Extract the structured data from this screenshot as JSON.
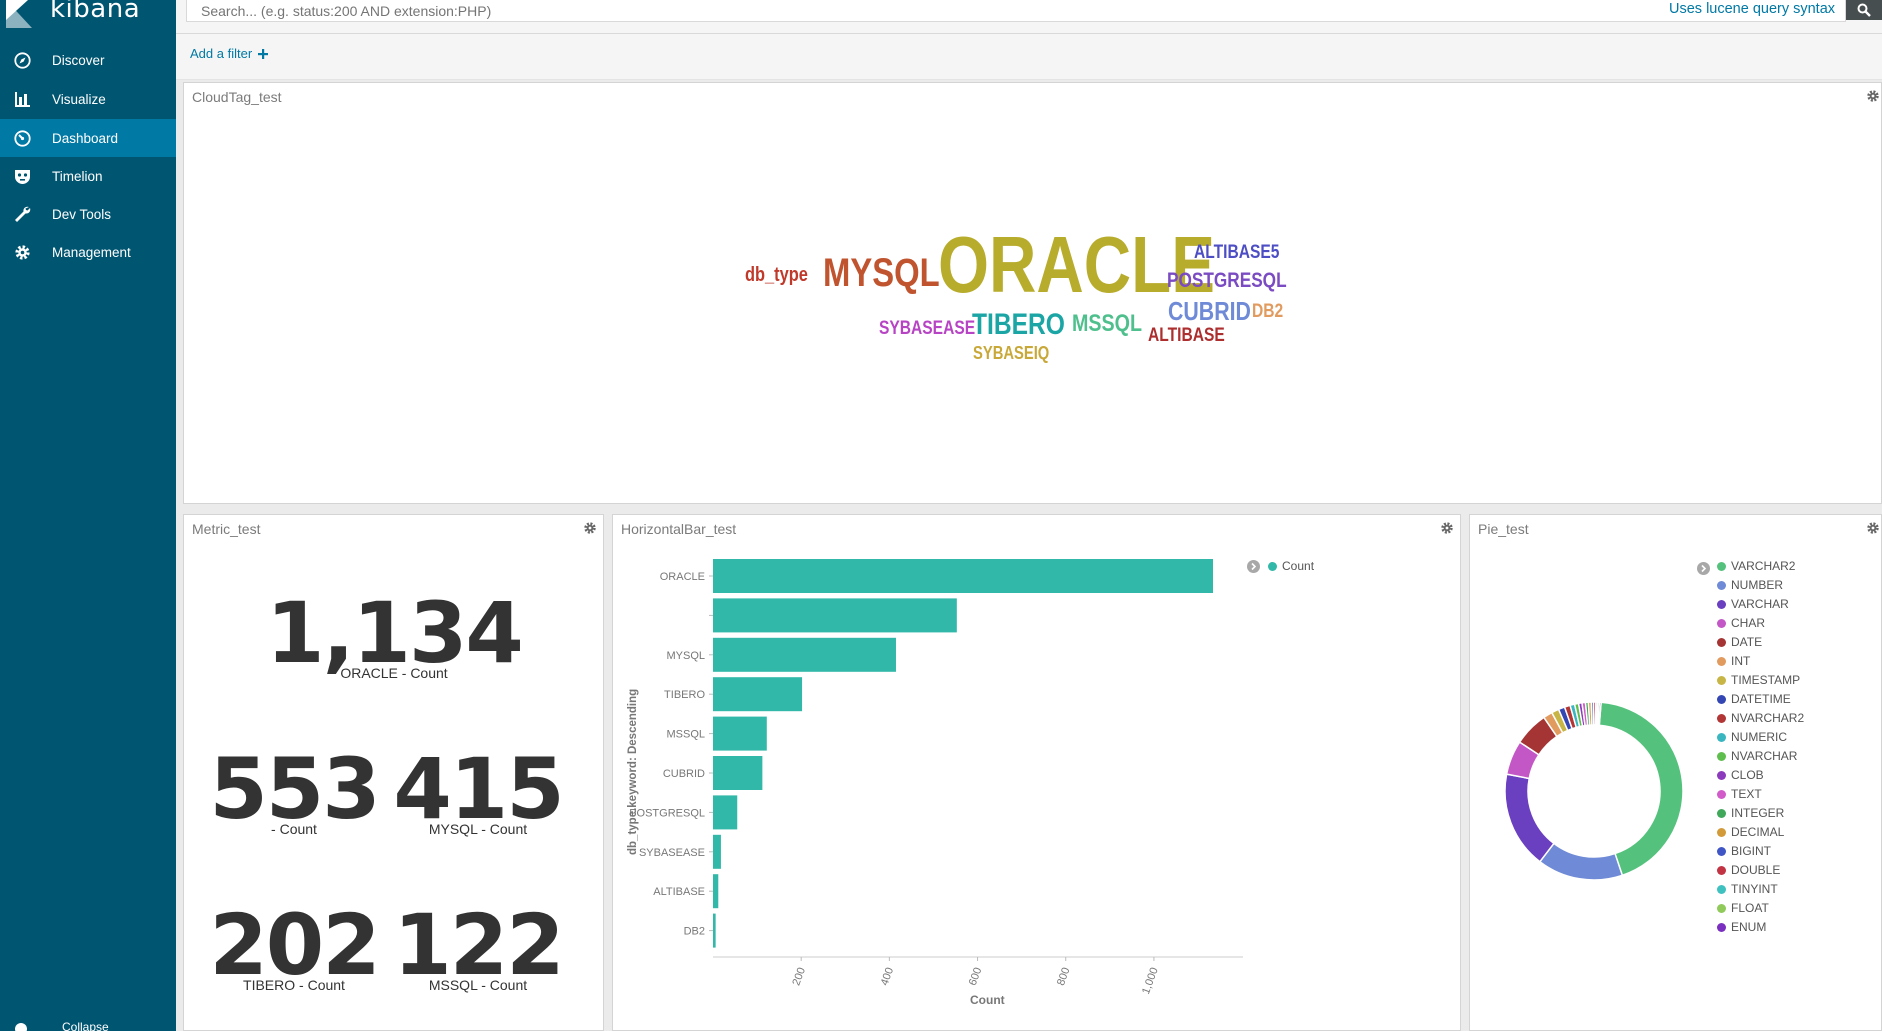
{
  "app": {
    "brand": "kibana"
  },
  "sidebar": {
    "items": [
      {
        "label": "Discover",
        "icon": "compass-icon",
        "active": false
      },
      {
        "label": "Visualize",
        "icon": "bar-chart-icon",
        "active": false
      },
      {
        "label": "Dashboard",
        "icon": "dashboard-gauge-icon",
        "active": true
      },
      {
        "label": "Timelion",
        "icon": "timelion-mask-icon",
        "active": false
      },
      {
        "label": "Dev Tools",
        "icon": "wrench-icon",
        "active": false
      },
      {
        "label": "Management",
        "icon": "gear-icon",
        "active": false
      }
    ],
    "collapse_label": "Collapse"
  },
  "query": {
    "placeholder": "Search... (e.g. status:200 AND extension:PHP)",
    "value": "",
    "lucene_link": "Uses lucene query syntax"
  },
  "filter": {
    "add_label": "Add a filter"
  },
  "panels": {
    "cloud": {
      "title": "CloudTag_test",
      "words": [
        {
          "text": "db_type",
          "color": "#c0392b",
          "size": 20
        },
        {
          "text": "MYSQL",
          "color": "#c0542f",
          "size": 40
        },
        {
          "text": "ORACLE",
          "color": "#b8ac2c",
          "size": 80
        },
        {
          "text": "ALTIBASE5",
          "color": "#4d4ec4",
          "size": 19
        },
        {
          "text": "POSTGRESQL",
          "color": "#7a4bc2",
          "size": 21
        },
        {
          "text": "CUBRID",
          "color": "#6f8ad6",
          "size": 26
        },
        {
          "text": "DB2",
          "color": "#e19b5f",
          "size": 19
        },
        {
          "text": "SYBASEASE",
          "color": "#b744c4",
          "size": 19
        },
        {
          "text": "TIBERO",
          "color": "#1ba5a5",
          "size": 30
        },
        {
          "text": "MSSQL",
          "color": "#4fc08d",
          "size": 24
        },
        {
          "text": "ALTIBASE",
          "color": "#ad2e2e",
          "size": 19
        },
        {
          "text": "SYBASEIQ",
          "color": "#c8a838",
          "size": 18
        }
      ]
    },
    "metric": {
      "title": "Metric_test",
      "metrics": [
        {
          "value": "1,134",
          "label": "ORACLE - Count"
        },
        {
          "value": "553",
          "label": "- Count"
        },
        {
          "value": "415",
          "label": "MYSQL - Count"
        },
        {
          "value": "202",
          "label": "TIBERO - Count"
        },
        {
          "value": "122",
          "label": "MSSQL - Count"
        }
      ]
    },
    "hbar": {
      "title": "HorizontalBar_test"
    },
    "pie": {
      "title": "Pie_test"
    }
  },
  "chart_data": [
    {
      "type": "bar",
      "orientation": "horizontal",
      "categories": [
        "ORACLE",
        "",
        "MYSQL",
        "TIBERO",
        "MSSQL",
        "CUBRID",
        "POSTGRESQL",
        "SYBASEASE",
        "ALTIBASE",
        "DB2"
      ],
      "series": [
        {
          "name": "Count",
          "values": [
            1134,
            553,
            415,
            202,
            122,
            112,
            55,
            18,
            12,
            6
          ],
          "color": "#32b8a9"
        }
      ],
      "xlabel": "Count",
      "ylabel": "db_type.keyword: Descending",
      "xlim": [
        0,
        1200
      ],
      "xticks": [
        "200",
        "400",
        "600",
        "800",
        "1,000"
      ],
      "legend": "top-right"
    },
    {
      "type": "pie",
      "donut": true,
      "labels": [
        "VARCHAR2",
        "NUMBER",
        "VARCHAR",
        "CHAR",
        "DATE",
        "INT",
        "TIMESTAMP",
        "DATETIME",
        "NVARCHAR2",
        "NUMERIC",
        "NVARCHAR",
        "CLOB",
        "TEXT",
        "INTEGER",
        "DECIMAL",
        "BIGINT",
        "DOUBLE",
        "TINYINT",
        "FLOAT",
        "ENUM"
      ],
      "values": [
        42,
        15,
        17,
        6,
        6,
        1.6,
        1.3,
        1.1,
        1.0,
        0.8,
        0.7,
        0.6,
        0.6,
        0.5,
        0.5,
        0.4,
        0.4,
        0.3,
        0.3,
        0.3
      ],
      "colors": [
        "#54c27c",
        "#6f8ad6",
        "#6a3fc0",
        "#c357c6",
        "#a53535",
        "#e19b5f",
        "#c7b545",
        "#3446b3",
        "#b33636",
        "#3ab6c0",
        "#5fbf4e",
        "#8c3bbd",
        "#d15bc9",
        "#3fa85a",
        "#d39a3a",
        "#4156c6",
        "#c23344",
        "#3fc1c0",
        "#8fca5a",
        "#7a2fc0"
      ],
      "legend": "top-right"
    }
  ]
}
